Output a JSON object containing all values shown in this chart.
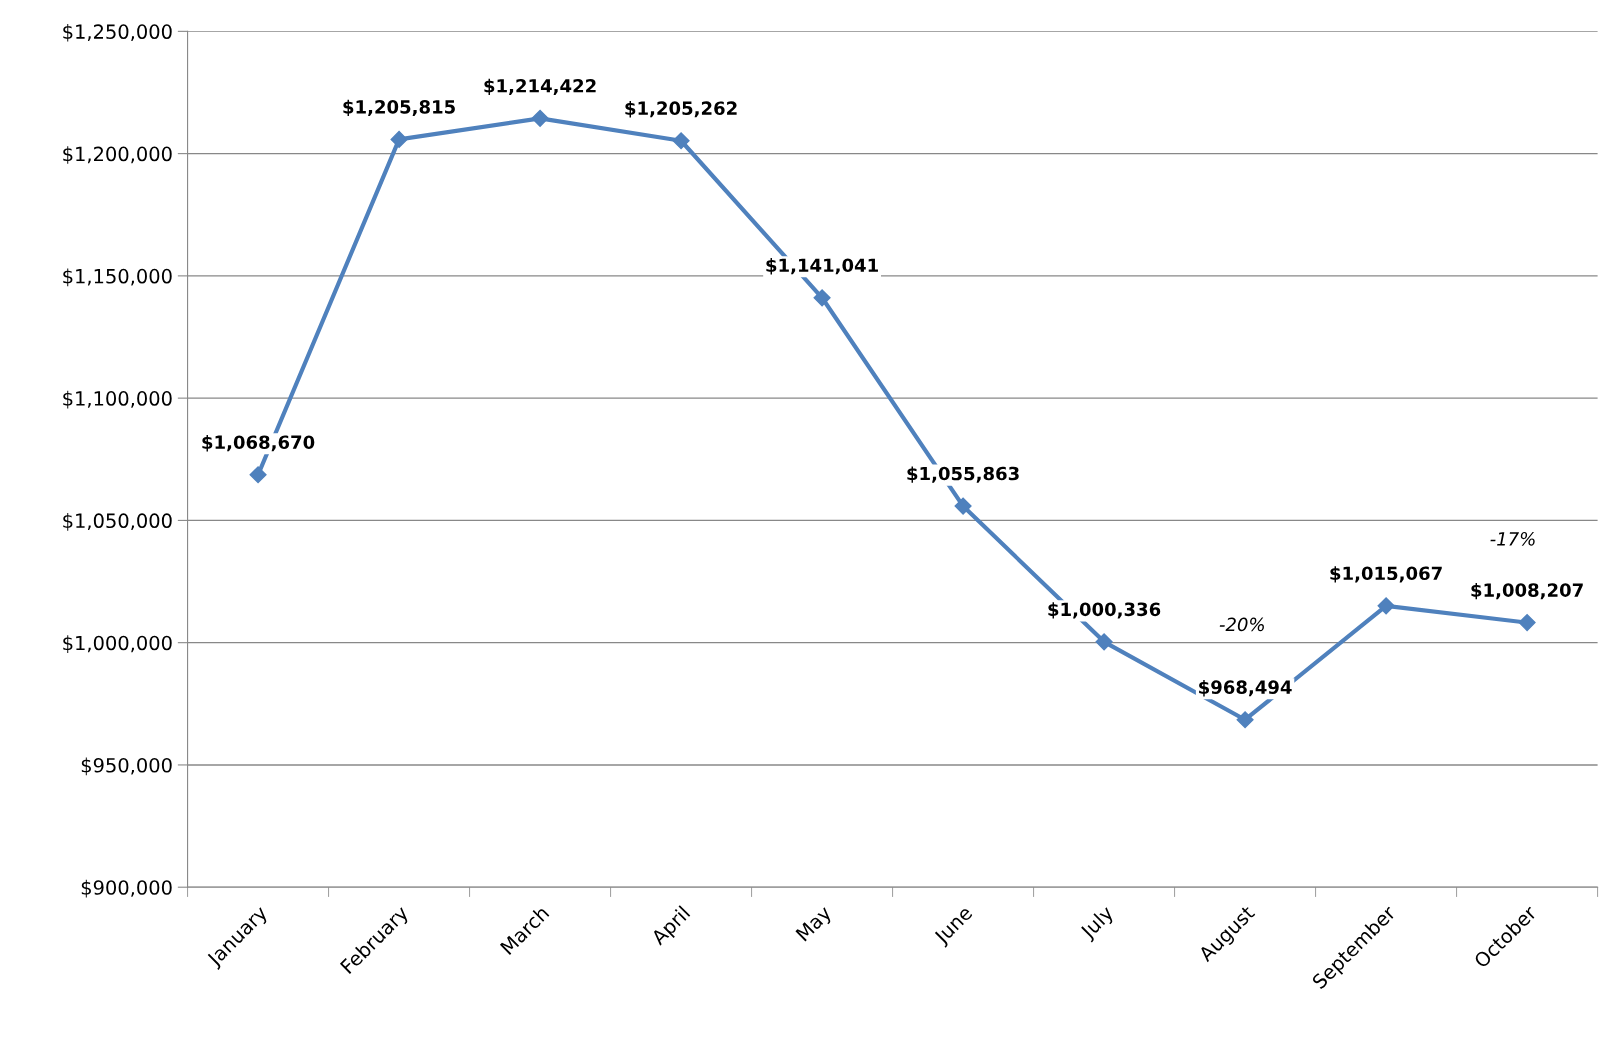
{
  "chart_data": {
    "type": "line",
    "categories": [
      "January",
      "February",
      "March",
      "April",
      "May",
      "June",
      "July",
      "August",
      "September",
      "October"
    ],
    "series": [
      {
        "color": "#4f81bd",
        "values": [
          1068670,
          1205815,
          1214422,
          1205262,
          1141041,
          1055863,
          1000336,
          968494,
          1015067,
          1008207
        ]
      }
    ],
    "ylim": [
      900000,
      1250000
    ],
    "yticks": [
      {
        "value": 900000,
        "label": "$900,000"
      },
      {
        "value": 950000,
        "label": "$950,000"
      },
      {
        "value": 1000000,
        "label": "$1,000,000"
      },
      {
        "value": 1050000,
        "label": "$1,050,000"
      },
      {
        "value": 1100000,
        "label": "$1,100,000"
      },
      {
        "value": 1150000,
        "label": "$1,150,000"
      },
      {
        "value": 1200000,
        "label": "$1,200,000"
      },
      {
        "value": 1250000,
        "label": "$1,250,000"
      }
    ],
    "value_labels": [
      "$1,068,670",
      "$1,205,815",
      "$1,214,422",
      "$1,205,262",
      "$1,141,041",
      "$1,055,863",
      "$1,000,336",
      "$968,494",
      "$1,015,067",
      "$1,008,207"
    ],
    "annotations": [
      "-20%",
      "-17%"
    ],
    "grid": "y",
    "legend": false,
    "marker": "diamond",
    "line_style": "solid"
  }
}
